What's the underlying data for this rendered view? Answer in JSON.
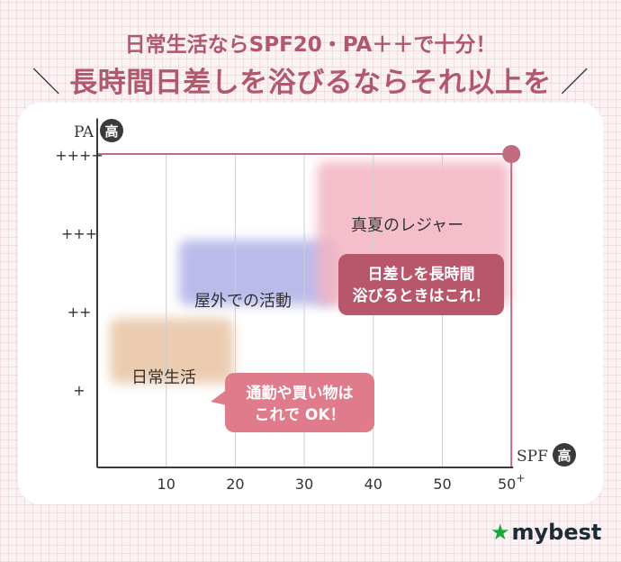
{
  "header": {
    "line1": "日常生活ならSPF20・PA＋＋で十分！",
    "line2": "長時間日差しを浴びるならそれ以上を",
    "colors": {
      "title": "#b0596e"
    }
  },
  "chart_data": {
    "type": "area",
    "title": "",
    "xlabel": "SPF",
    "xlabel_badge": "高",
    "ylabel": "PA",
    "ylabel_badge": "高",
    "x_ticks": [
      "10",
      "20",
      "30",
      "40",
      "50",
      "50+"
    ],
    "y_ticks": [
      "+",
      "++",
      "+++",
      "++++"
    ],
    "xlim": [
      0,
      60
    ],
    "ylim": [
      0,
      4.5
    ],
    "max_point": {
      "x": 60,
      "y": 4
    },
    "regions": [
      {
        "name": "日常生活",
        "x": [
          0,
          20
        ],
        "y": [
          1,
          2
        ],
        "color": "#e8c4a4",
        "callout": "通勤や買い物は\nこれで OK！",
        "callout_color": "#e07b8c"
      },
      {
        "name": "屋外での活動",
        "x": [
          10,
          35
        ],
        "y": [
          2,
          3
        ],
        "color": "#b0b0e8"
      },
      {
        "name": "真夏のレジャー",
        "x": [
          30,
          60
        ],
        "y": [
          2,
          4
        ],
        "color": "#f3b4c2",
        "callout": "日差しを長時間\n浴びるときはこれ！",
        "callout_color": "#b8566c"
      }
    ],
    "colors": {
      "axis": "#3a3a3a",
      "grid": "#cfcfcf",
      "highlight": "#c26a7e"
    }
  },
  "logo": {
    "text": "mybest",
    "icon": "star-icon",
    "color": "#17a83a"
  }
}
